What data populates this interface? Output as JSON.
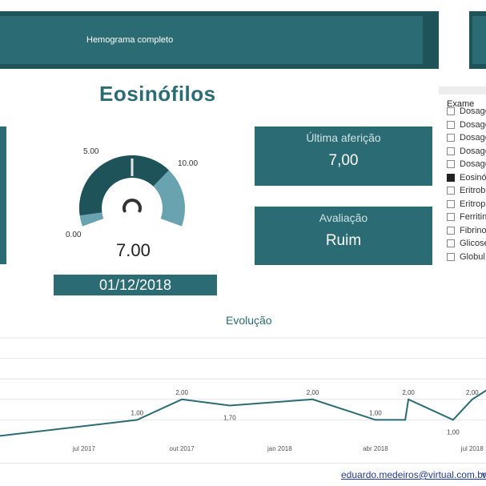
{
  "banner": {
    "title": "Hemograma completo"
  },
  "page_title": "Eosinófilos",
  "gauge": {
    "min": 0,
    "max": 10,
    "target": 5,
    "value": 7,
    "min_label": "0.00",
    "max_label": "10.00",
    "target_label": "5.00",
    "value_label": "7.00",
    "colors": {
      "track": "#6aa3b0",
      "fill": "#1e535a"
    }
  },
  "date": "01/12/2018",
  "cards": {
    "ultima": {
      "label": "Última aferição",
      "value": "7,00"
    },
    "avaliacao": {
      "label": "Avaliação",
      "value": "Ruim"
    }
  },
  "slicer": {
    "header": "Exame",
    "items": [
      {
        "label": "Dosage",
        "checked": false
      },
      {
        "label": "Dosage",
        "checked": false
      },
      {
        "label": "Dosage",
        "checked": false
      },
      {
        "label": "Dosage",
        "checked": false
      },
      {
        "label": "Dosage",
        "checked": false
      },
      {
        "label": "Eosinó",
        "checked": true
      },
      {
        "label": "Eritrob",
        "checked": false
      },
      {
        "label": "Eritrop",
        "checked": false
      },
      {
        "label": "Ferritin",
        "checked": false
      },
      {
        "label": "Fibrino",
        "checked": false
      },
      {
        "label": "Glicose",
        "checked": false
      },
      {
        "label": "Globul",
        "checked": false
      }
    ]
  },
  "chart_title": "Evolução",
  "chart_data": {
    "type": "line",
    "title": "Evolução",
    "x_ticks": [
      "jul 2017",
      "out 2017",
      "jan 2018",
      "abr 2018",
      "jul 2018"
    ],
    "points": [
      {
        "x": "2017-04-10",
        "y": 0.2
      },
      {
        "x": "2017-08-20",
        "y": 1.0,
        "label": "1,00"
      },
      {
        "x": "2017-10-01",
        "y": 2.0,
        "label": "2,00"
      },
      {
        "x": "2017-11-15",
        "y": 1.7,
        "label": "1,70"
      },
      {
        "x": "2018-02-01",
        "y": 2.0,
        "label": "2,00"
      },
      {
        "x": "2018-04-01",
        "y": 1.0,
        "label": "1,00"
      },
      {
        "x": "2018-04-29",
        "y": 1.0
      },
      {
        "x": "2018-05-02",
        "y": 2.0,
        "label": "2,00"
      },
      {
        "x": "2018-06-13",
        "y": 1.0,
        "label": "1,00"
      },
      {
        "x": "2018-07-01",
        "y": 2.0,
        "label": "2,00"
      },
      {
        "x": "2018-07-25",
        "y": 2.8
      }
    ],
    "line_color": "#2b6b73",
    "grid": true
  },
  "footer": {
    "email": "eduardo.medeiros@virtual.com.br",
    "extra": "v"
  }
}
